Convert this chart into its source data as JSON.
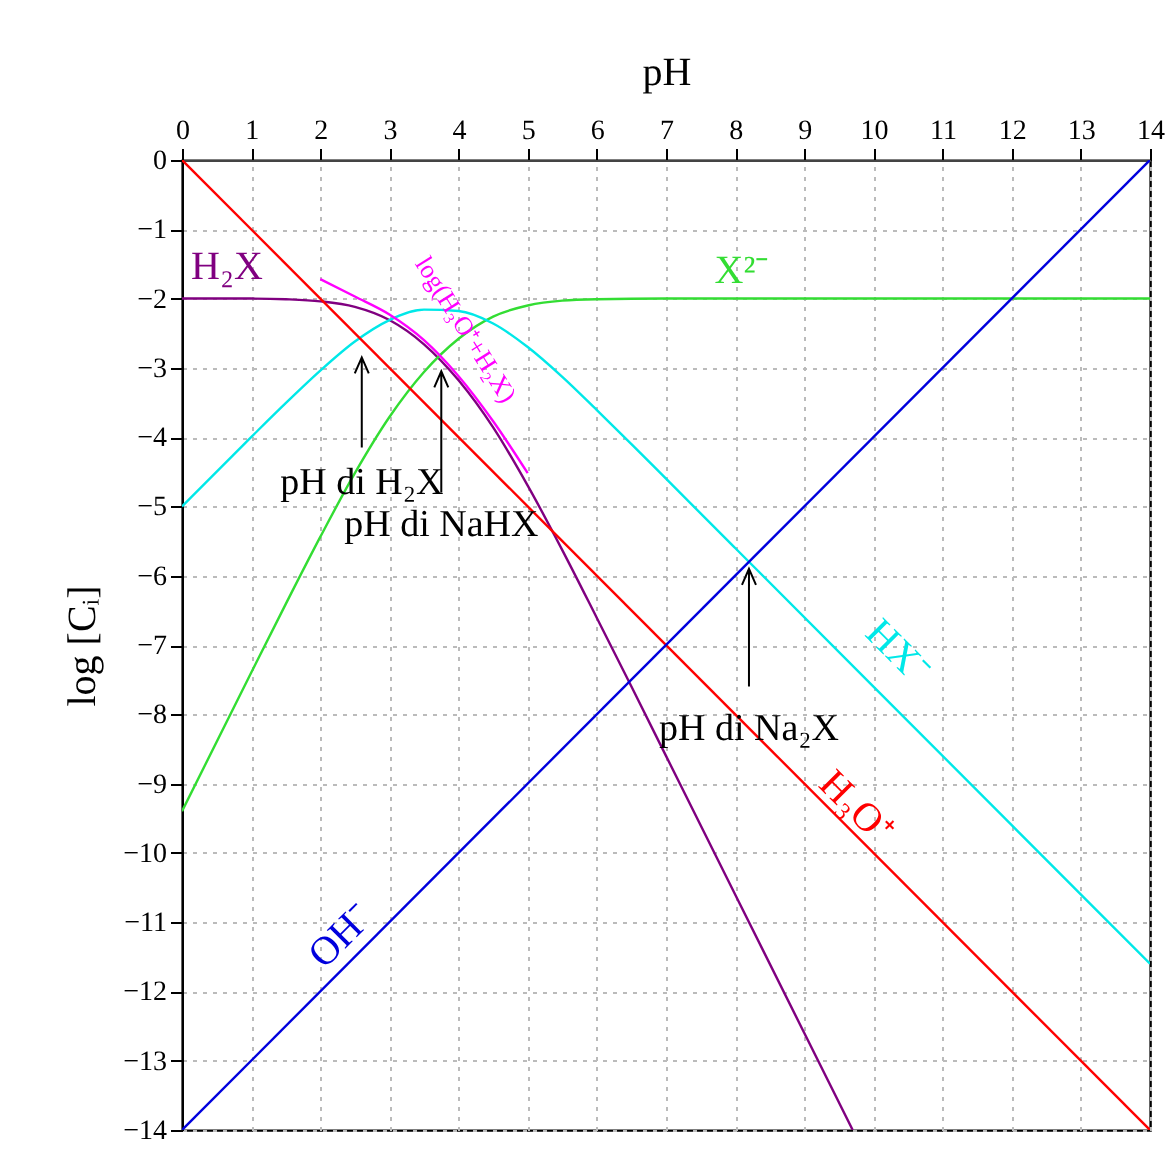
{
  "chart_data": {
    "type": "line",
    "xlabel": "pH",
    "ylabel": "log [Cᵢ]",
    "xlim": [
      0,
      14
    ],
    "ylim": [
      -14,
      0
    ],
    "xticks": [
      0,
      1,
      2,
      3,
      4,
      5,
      6,
      7,
      8,
      9,
      10,
      11,
      12,
      13,
      14
    ],
    "yticks": [
      0,
      -1,
      -2,
      -3,
      -4,
      -5,
      -6,
      -7,
      -8,
      -9,
      -10,
      -11,
      -12,
      -13,
      -14
    ],
    "grid": true,
    "legend": false,
    "series": [
      {
        "name": "H₂X",
        "color": "#800080",
        "x": [
          0,
          1,
          1.5,
          2,
          2.5,
          3,
          3.5,
          4,
          4.5,
          5,
          5.5,
          6,
          6.5,
          7,
          8,
          9,
          9.7
        ],
        "values": [
          -2.0,
          -2.0,
          -2.01,
          -2.04,
          -2.12,
          -2.31,
          -2.66,
          -3.18,
          -3.86,
          -4.7,
          -5.63,
          -6.61,
          -7.6,
          -8.6,
          -10.6,
          -12.6,
          -14.0
        ]
      },
      {
        "name": "X²⁻",
        "color": "#33dd33",
        "x": [
          0,
          1,
          1.5,
          2,
          2.5,
          3,
          3.5,
          4,
          4.5,
          5,
          5.5,
          6,
          7,
          8,
          14
        ],
        "values": [
          -9.4,
          -7.4,
          -6.41,
          -5.44,
          -4.52,
          -3.71,
          -3.06,
          -2.58,
          -2.26,
          -2.1,
          -2.03,
          -2.01,
          -2.0,
          -2.0,
          -2.0
        ]
      },
      {
        "name": "HX⁻",
        "color": "#00e8e8",
        "x": [
          0,
          1,
          1.5,
          2,
          2.5,
          3,
          3.5,
          4,
          4.5,
          5,
          5.5,
          6,
          6.5,
          7,
          8,
          10,
          12,
          14
        ],
        "values": [
          -5.0,
          -4.0,
          -3.51,
          -3.04,
          -2.62,
          -2.31,
          -2.16,
          -2.18,
          -2.36,
          -2.7,
          -3.13,
          -3.61,
          -4.1,
          -4.6,
          -5.6,
          -7.6,
          -9.6,
          -11.6
        ]
      },
      {
        "name": "H₃O⁺",
        "color": "#ff0000",
        "x": [
          0,
          14
        ],
        "values": [
          0,
          -14
        ]
      },
      {
        "name": "OH⁻",
        "color": "#0000dd",
        "x": [
          0,
          14
        ],
        "values": [
          -14,
          0
        ]
      },
      {
        "name": "log(H₃O⁺+H₂X)",
        "color": "#ff00ff",
        "x": [
          2,
          2.5,
          3,
          3.5,
          4,
          4.5,
          5
        ],
        "values": [
          -1.72,
          -1.97,
          -2.23,
          -2.6,
          -3.12,
          -3.77,
          -4.52
        ]
      }
    ],
    "annotations": [
      {
        "text": "pH di H₂X",
        "x": 2.6,
        "y": -2.6
      },
      {
        "text": "pH di NaHX",
        "x": 3.75,
        "y": -2.9
      },
      {
        "text": "pH di Na₂X",
        "x": 8.2,
        "y": -5.9
      }
    ]
  }
}
